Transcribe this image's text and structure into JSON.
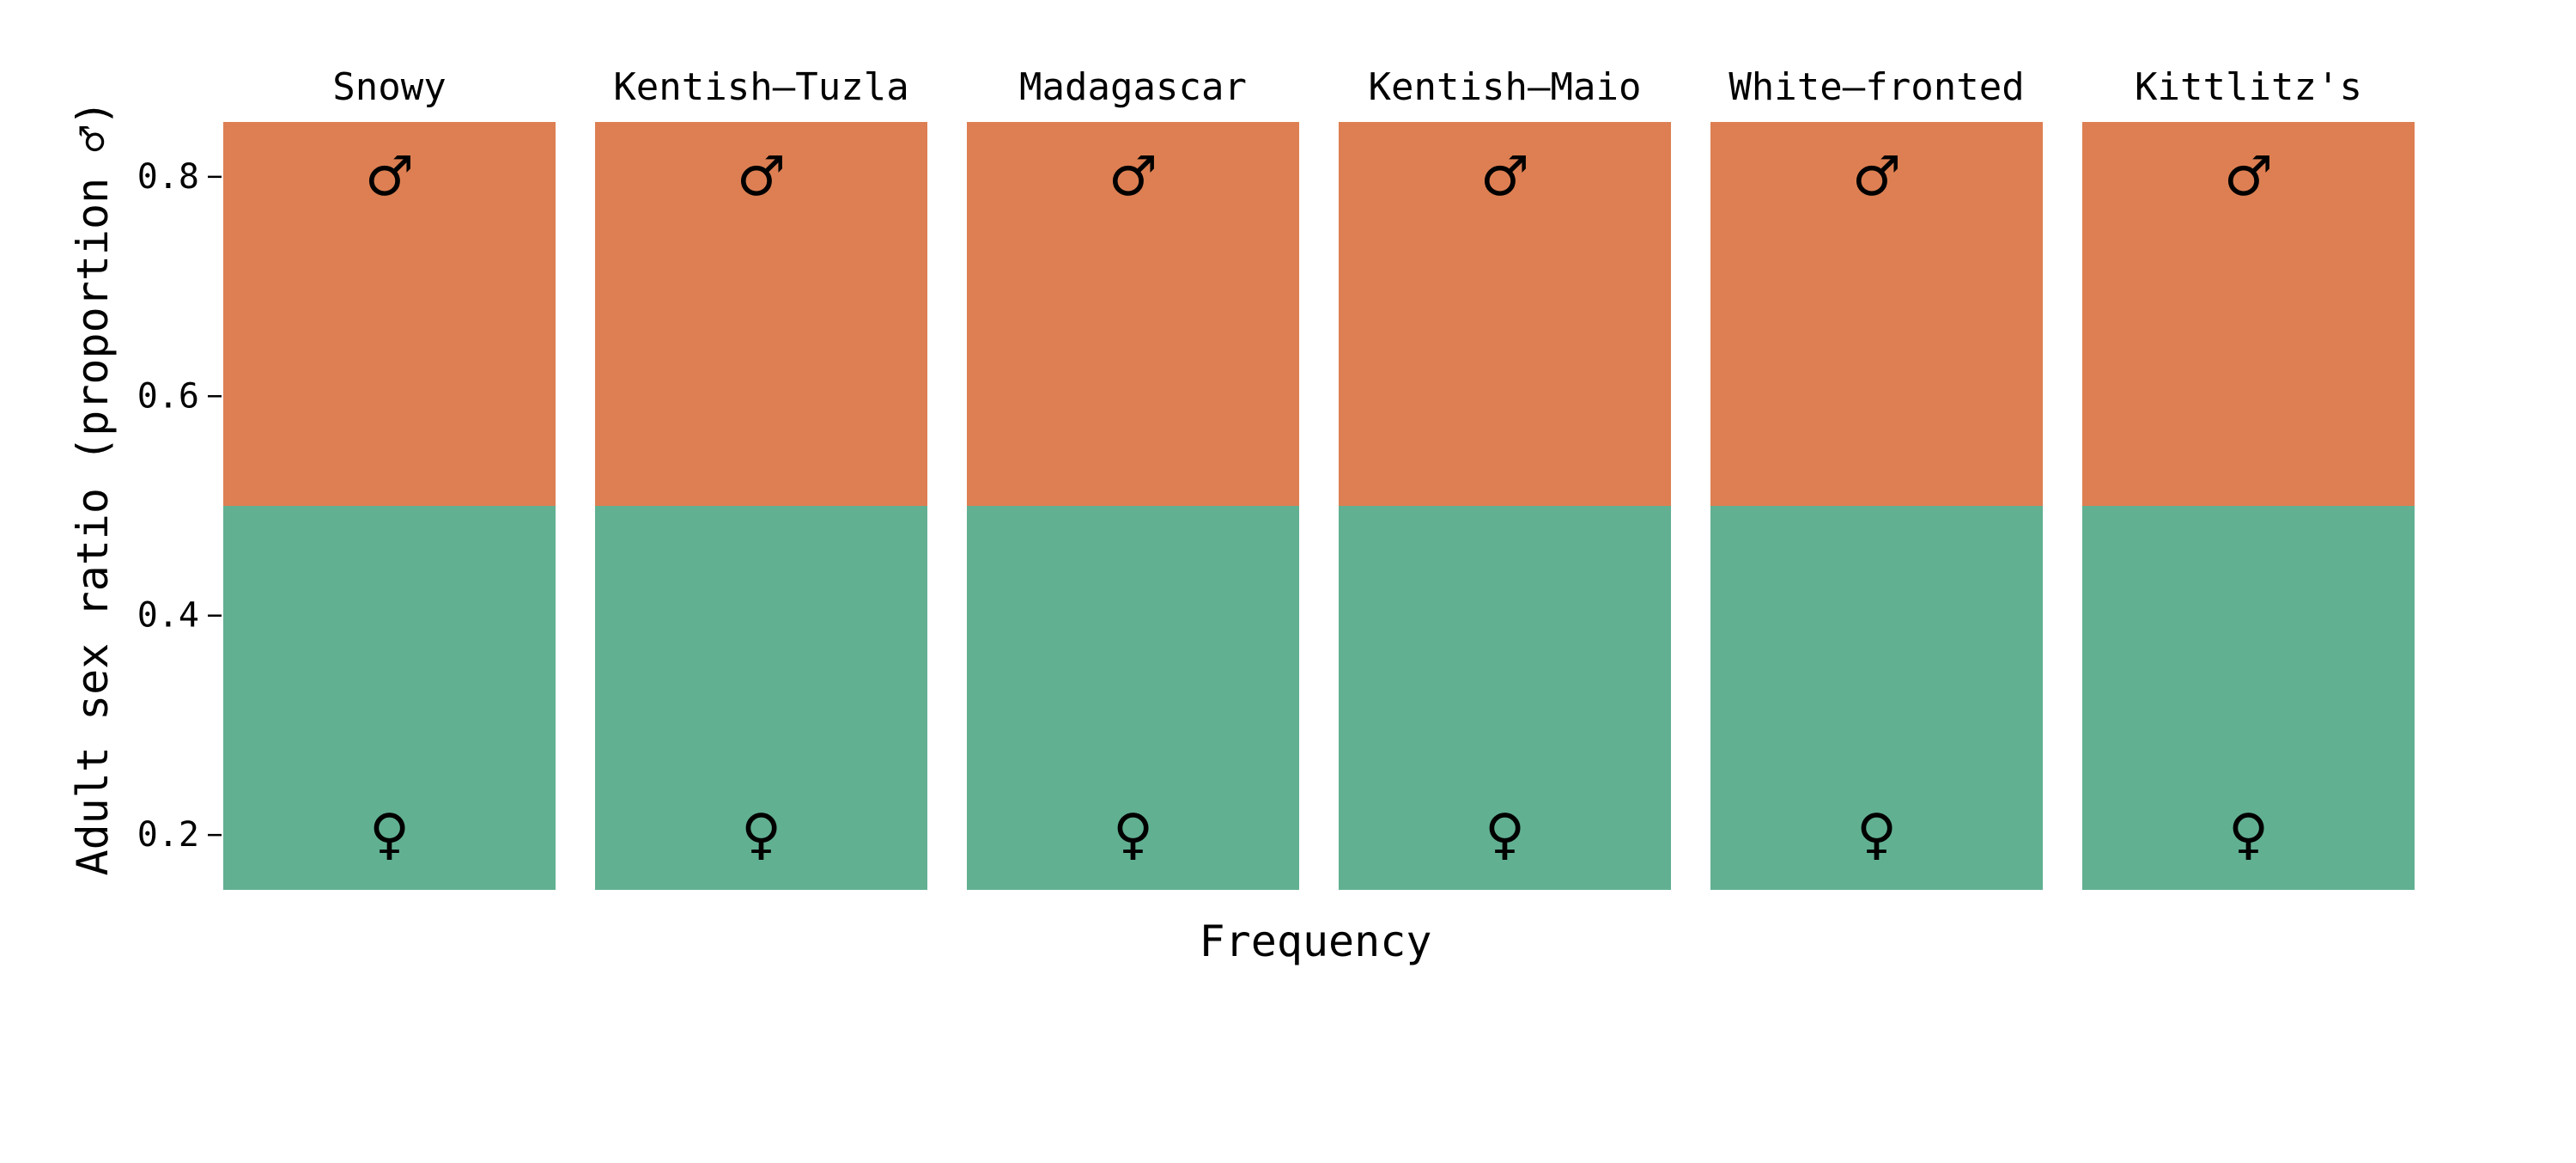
{
  "chart_data": {
    "type": "bar",
    "stacked": true,
    "orientation": "vertical",
    "facets": [
      "Snowy",
      "Kentish–Tuzla",
      "Madagascar",
      "Kentish–Maio",
      "White–fronted",
      "Kittlitz's"
    ],
    "xlabel": "Frequency",
    "ylabel": "Adult sex ratio (proportion ♂)",
    "ylim": [
      0.15,
      0.85
    ],
    "yticks": [
      0.2,
      0.4,
      0.6,
      0.8
    ],
    "ytick_labels": [
      "0.2",
      "0.4",
      "0.6",
      "0.8"
    ],
    "grid": false,
    "series": [
      {
        "symbol": "♀",
        "color": "#61b092",
        "from": [
          0.15,
          0.15,
          0.15,
          0.15,
          0.15,
          0.15
        ],
        "to": [
          0.5,
          0.5,
          0.5,
          0.5,
          0.5,
          0.5
        ]
      },
      {
        "symbol": "♂",
        "color": "#dd7f52",
        "from": [
          0.5,
          0.5,
          0.5,
          0.5,
          0.5,
          0.5
        ],
        "to": [
          0.85,
          0.85,
          0.85,
          0.85,
          0.85,
          0.85
        ]
      }
    ],
    "symbol_positions": {
      "male": 0.8,
      "female": 0.2
    }
  }
}
